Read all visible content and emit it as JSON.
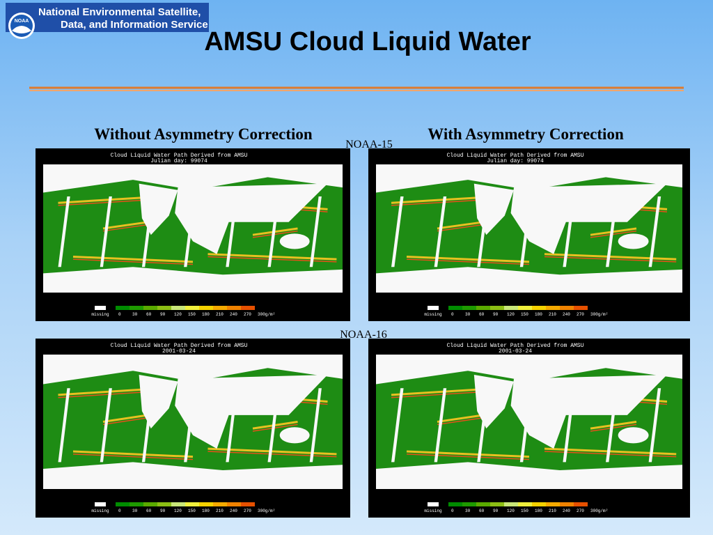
{
  "header": {
    "logo_text": "NOAA",
    "agency_line1": "National Environmental Satellite,",
    "agency_line2": "Data, and Information Service",
    "title": "AMSU Cloud Liquid Water"
  },
  "columns": [
    "Without  Asymmetry Correction",
    "With Asymmetry Correction"
  ],
  "rows": [
    "NOAA-15",
    "NOAA-16"
  ],
  "panels": [
    {
      "title": "Cloud Liquid Water Path Derived from AMSU",
      "subtitle": "Julian day: 99074"
    },
    {
      "title": "Cloud Liquid Water Path Derived from AMSU",
      "subtitle": "Julian day: 99074"
    },
    {
      "title": "Cloud Liquid Water Path Derived from AMSU",
      "subtitle": "2001-03-24"
    },
    {
      "title": "Cloud Liquid Water Path Derived from AMSU",
      "subtitle": "2001-03-24"
    }
  ],
  "colorbar": {
    "missing": "missing",
    "labels": [
      "0",
      "30",
      "60",
      "90",
      "120",
      "150",
      "180",
      "210",
      "240",
      "270",
      "300g/m²"
    ],
    "colors": [
      "#008c00",
      "#1e9a00",
      "#5aaa00",
      "#8cbe14",
      "#c8e678",
      "#f0f03c",
      "#f5d200",
      "#f5aa00",
      "#f08200",
      "#e65000"
    ]
  }
}
